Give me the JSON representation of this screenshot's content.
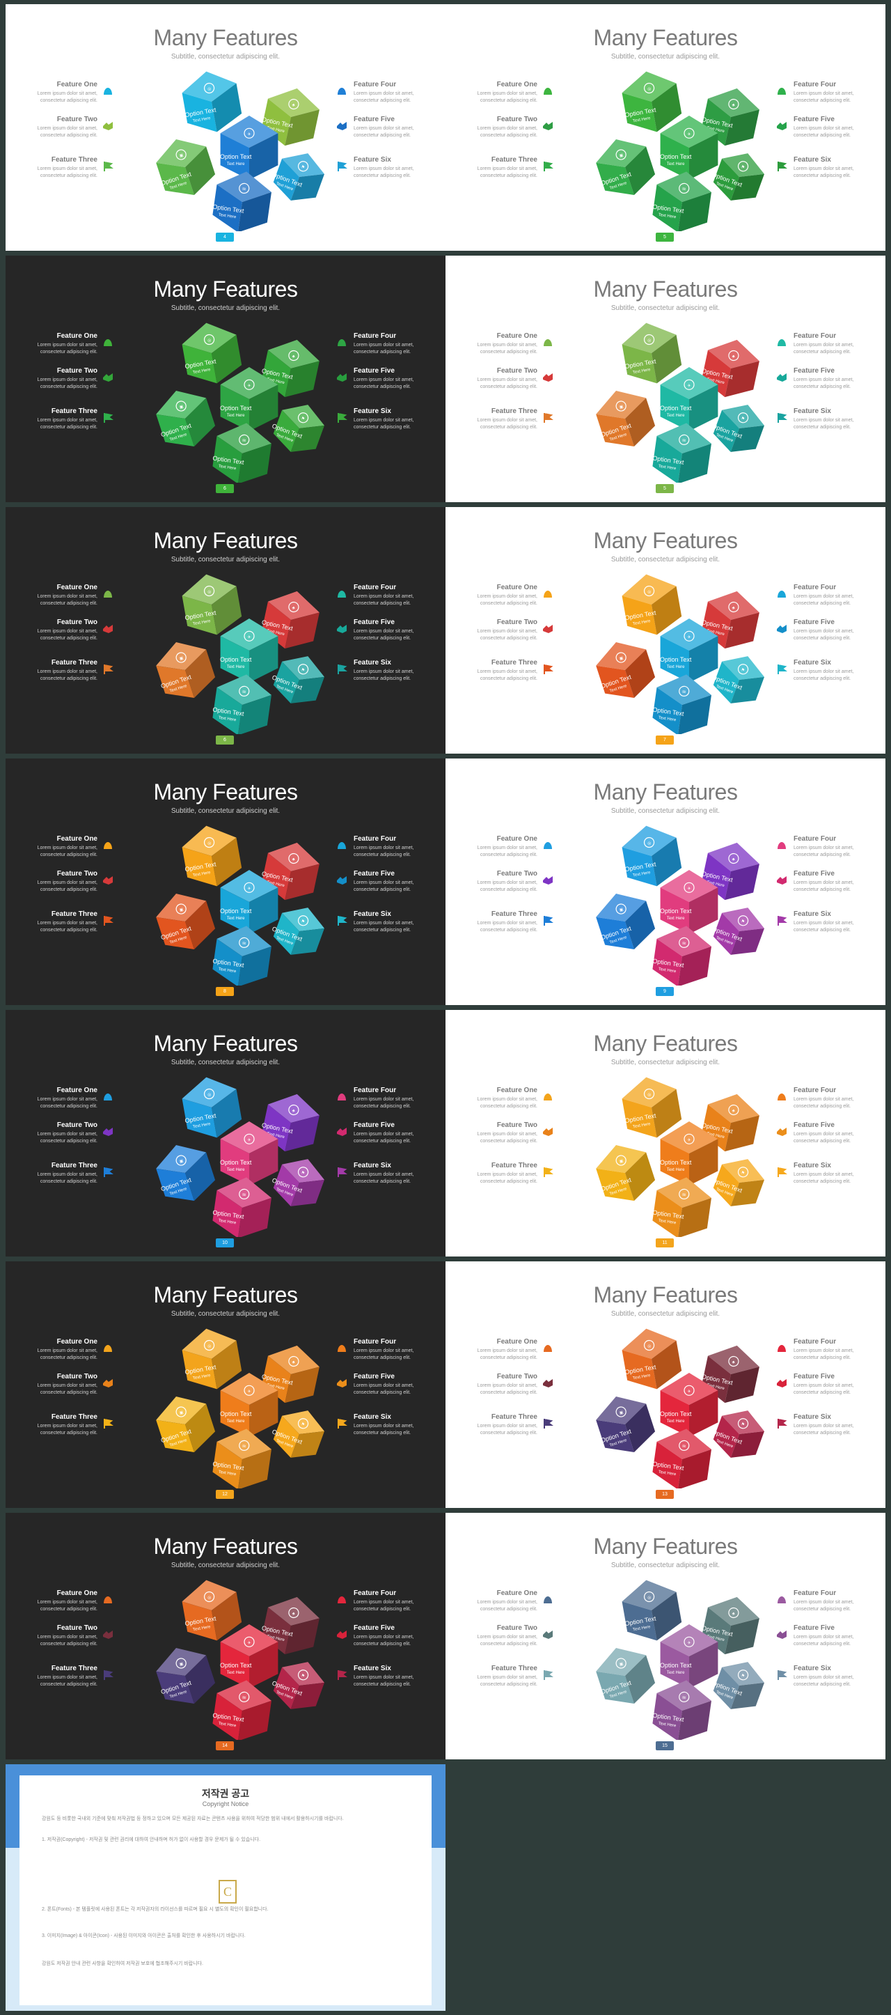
{
  "slide_title": "Many Features",
  "slide_subtitle": "Subtitle, consectetur adipiscing elit.",
  "features": [
    {
      "title": "Feature One",
      "desc": "Lorem ipsum dolor sit amet, consectetur adipiscing elit."
    },
    {
      "title": "Feature Two",
      "desc": "Lorem ipsum dolor sit amet, consectetur adipiscing elit."
    },
    {
      "title": "Feature Three",
      "desc": "Lorem ipsum dolor sit amet, consectetur adipiscing elit."
    },
    {
      "title": "Feature Four",
      "desc": "Lorem ipsum dolor sit amet, consectetur adipiscing elit."
    },
    {
      "title": "Feature Five",
      "desc": "Lorem ipsum dolor sit amet, consectetur adipiscing elit."
    },
    {
      "title": "Feature Six",
      "desc": "Lorem ipsum dolor sit amet, consectetur adipiscing elit."
    }
  ],
  "option_text": "Option Text",
  "text_here": "Text Here",
  "feature_icons": [
    "hand-icon",
    "handshake-icon",
    "flag-icon",
    "cog-icon",
    "tools-icon",
    "leaf-icon"
  ],
  "cube_icons": [
    "target-icon",
    "globe-icon",
    "camera-icon",
    "tree-icon",
    "glasses-icon",
    "paper-plane-icon",
    "chat-icon",
    "money-icon",
    "flag-icon"
  ],
  "slides": [
    {
      "page": "4",
      "theme": "light",
      "colors": [
        "#19b3e0",
        "#8fbf3f",
        "#5bb84a",
        "#1f7fd6",
        "#1c6fc4",
        "#1fa0d6"
      ]
    },
    {
      "page": "5",
      "theme": "light",
      "colors": [
        "#3db53f",
        "#2e9d44",
        "#32ad4a",
        "#2fb14c",
        "#25a34b",
        "#2c9c3c"
      ]
    },
    {
      "page": "6",
      "theme": "dark",
      "colors": [
        "#3fb33a",
        "#33a63a",
        "#2fb04b",
        "#2ea544",
        "#289e3e",
        "#3aab3c"
      ]
    },
    {
      "page": "5",
      "theme": "light",
      "colors": [
        "#7cb648",
        "#d63a3a",
        "#e0782a",
        "#1fb9a4",
        "#18a99a",
        "#1aa3a0"
      ]
    },
    {
      "page": "6",
      "theme": "dark",
      "colors": [
        "#7cb648",
        "#d63a3a",
        "#e0782a",
        "#1fb9a4",
        "#18a99a",
        "#1aa3a0"
      ]
    },
    {
      "page": "7",
      "theme": "light",
      "colors": [
        "#f5a318",
        "#d63a3a",
        "#e2551f",
        "#19a6d9",
        "#148fc9",
        "#1fb5c9"
      ]
    },
    {
      "page": "8",
      "theme": "dark",
      "colors": [
        "#f5a318",
        "#d63a3a",
        "#e2551f",
        "#19a6d9",
        "#148fc9",
        "#1fb5c9"
      ]
    },
    {
      "page": "9",
      "theme": "light",
      "colors": [
        "#1f9ee0",
        "#7e35c4",
        "#1e7ed8",
        "#e13c7e",
        "#d22a6f",
        "#a33aa8"
      ]
    },
    {
      "page": "10",
      "theme": "dark",
      "colors": [
        "#1f9ee0",
        "#7e35c4",
        "#1e7ed8",
        "#e13c7e",
        "#d22a6f",
        "#a33aa8"
      ]
    },
    {
      "page": "11",
      "theme": "light",
      "colors": [
        "#f3a41c",
        "#e9821a",
        "#f2b117",
        "#ef7d1b",
        "#eb8e1a",
        "#f6a81c"
      ]
    },
    {
      "page": "12",
      "theme": "dark",
      "colors": [
        "#f3a41c",
        "#e9821a",
        "#f2b117",
        "#ef7d1b",
        "#eb8e1a",
        "#f6a81c"
      ]
    },
    {
      "page": "13",
      "theme": "light",
      "colors": [
        "#e66a21",
        "#7a2f3d",
        "#4a3c7a",
        "#e4263c",
        "#d8223a",
        "#b4254a"
      ]
    },
    {
      "page": "14",
      "theme": "dark",
      "colors": [
        "#e66a21",
        "#7a2f3d",
        "#4a3c7a",
        "#e4263c",
        "#d8223a",
        "#b4254a"
      ]
    },
    {
      "page": "15",
      "theme": "light",
      "colors": [
        "#4d6d92",
        "#5a7a7a",
        "#7aa8b0",
        "#9b5aa0",
        "#8a4f94",
        "#6f8fa6"
      ]
    }
  ],
  "copyright": {
    "title": "저작권 공고",
    "subtitle": "Copyright Notice",
    "logo_letter": "C",
    "paragraphs": [
      "강원도 등 비롯한 국내외 기준에 맞춰 저작권법 등 정하고 있으며 모든 제공된 자료는 콘텐츠 사용을 위하여 적당한 범위 내에서 활용하시기를 바랍니다.",
      "1. 저작권(Copyright) - 저작권 및 관련 권리에 대하여 안내하며 허가 없이 사용할 경우 문제가 될 수 있습니다.",
      "2. 폰트(Fonts) - 본 템플릿에 사용된 폰트는 각 저작권자의 라이선스를 따르며 필요 시 별도의 확인이 필요합니다.",
      "3. 이미지(Image) & 아이콘(Icon) - 사용된 이미지와 아이콘은 출처를 확인한 후 사용하시기 바랍니다.",
      "강원도 저작권 안내 관련 사항을 확인하여 저작권 보호에 협조해주시기 바랍니다."
    ]
  }
}
